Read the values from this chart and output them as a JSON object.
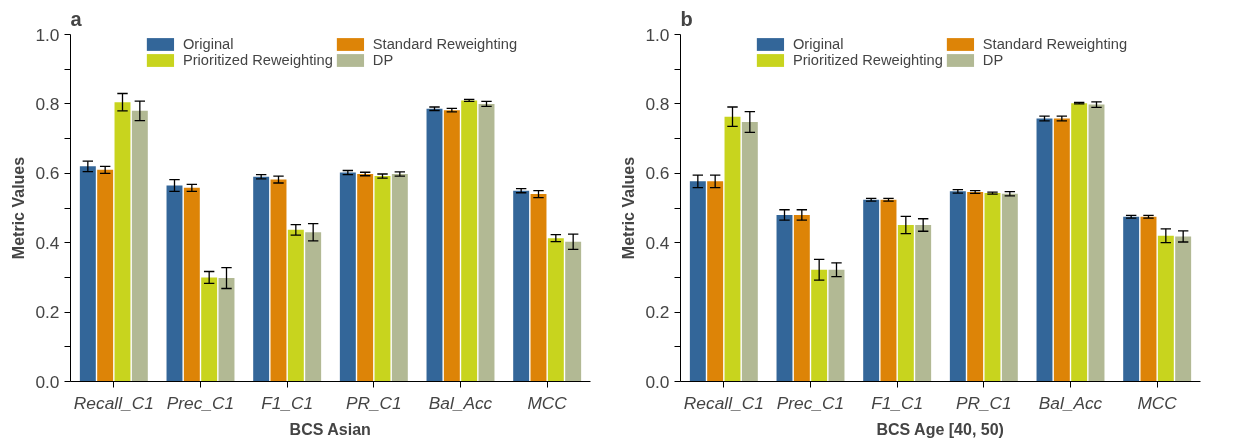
{
  "chart_data": [
    {
      "type": "bar",
      "title": "a",
      "xlabel": "BCS Asian",
      "ylabel": "Metric Values",
      "categories": [
        "Recall_C1",
        "Prec_C1",
        "F1_C1",
        "PR_C1",
        "Bal_Acc",
        "MCC"
      ],
      "ylim": [
        0,
        1.0
      ],
      "yticks": [
        "0.0",
        {
          "value": 0.1,
          "label": null
        },
        {
          "value": 0.2,
          "label": "0.2"
        },
        {
          "value": 0.3,
          "label": null
        },
        {
          "value": 0.4,
          "label": "0.4"
        },
        {
          "value": 0.5,
          "label": null
        },
        {
          "value": 0.6,
          "label": "0.6"
        },
        {
          "value": 0.7,
          "label": null
        },
        {
          "value": 0.8,
          "label": "0.8"
        },
        {
          "value": 0.9,
          "label": null
        },
        {
          "value": 1.0,
          "label": "1.0"
        }
      ],
      "grid": false,
      "legend": "top",
      "series": [
        {
          "name": "Original",
          "color": "#336699",
          "values": [
            0.62,
            0.565,
            0.59,
            0.602,
            0.786,
            0.55
          ],
          "errors": [
            0.015,
            0.017,
            0.006,
            0.006,
            0.005,
            0.006
          ]
        },
        {
          "name": "Standard Reweighting",
          "color": "#dd8407",
          "values": [
            0.61,
            0.558,
            0.582,
            0.598,
            0.782,
            0.54
          ],
          "errors": [
            0.01,
            0.01,
            0.01,
            0.005,
            0.005,
            0.01
          ]
        },
        {
          "name": "Prioritized Reweighting",
          "color": "#c8d41e",
          "values": [
            0.805,
            0.3,
            0.437,
            0.592,
            0.81,
            0.413
          ],
          "errors": [
            0.025,
            0.017,
            0.015,
            0.006,
            0.003,
            0.01
          ]
        },
        {
          "name": "DP",
          "color": "#b2b994",
          "values": [
            0.78,
            0.298,
            0.43,
            0.598,
            0.8,
            0.403
          ],
          "errors": [
            0.028,
            0.03,
            0.025,
            0.006,
            0.007,
            0.022
          ]
        }
      ]
    },
    {
      "type": "bar",
      "title": "b",
      "xlabel": "BCS Age [40, 50)",
      "ylabel": "Metric Values",
      "categories": [
        "Recall_C1",
        "Prec_C1",
        "F1_C1",
        "PR_C1",
        "Bal_Acc",
        "MCC"
      ],
      "ylim": [
        0,
        1.0
      ],
      "yticks": [
        "0.0",
        {
          "value": 0.1,
          "label": null
        },
        {
          "value": 0.2,
          "label": "0.2"
        },
        {
          "value": 0.3,
          "label": null
        },
        {
          "value": 0.4,
          "label": "0.4"
        },
        {
          "value": 0.5,
          "label": null
        },
        {
          "value": 0.6,
          "label": "0.6"
        },
        {
          "value": 0.7,
          "label": null
        },
        {
          "value": 0.8,
          "label": "0.8"
        },
        {
          "value": 0.9,
          "label": null
        },
        {
          "value": 1.0,
          "label": "1.0"
        }
      ],
      "grid": false,
      "legend": "top",
      "series": [
        {
          "name": "Original",
          "color": "#336699",
          "values": [
            0.577,
            0.48,
            0.524,
            0.548,
            0.758,
            0.475
          ],
          "errors": [
            0.018,
            0.015,
            0.004,
            0.005,
            0.007,
            0.004
          ]
        },
        {
          "name": "Standard Reweighting",
          "color": "#dd8407",
          "values": [
            0.577,
            0.48,
            0.524,
            0.546,
            0.758,
            0.475
          ],
          "errors": [
            0.018,
            0.015,
            0.004,
            0.004,
            0.007,
            0.004
          ]
        },
        {
          "name": "Prioritized Reweighting",
          "color": "#c8d41e",
          "values": [
            0.763,
            0.322,
            0.451,
            0.543,
            0.802,
            0.42
          ],
          "errors": [
            0.028,
            0.03,
            0.025,
            0.003,
            0.002,
            0.02
          ]
        },
        {
          "name": "DP",
          "color": "#b2b994",
          "values": [
            0.748,
            0.322,
            0.451,
            0.541,
            0.798,
            0.418
          ],
          "errors": [
            0.03,
            0.02,
            0.018,
            0.006,
            0.008,
            0.016
          ]
        }
      ]
    }
  ]
}
